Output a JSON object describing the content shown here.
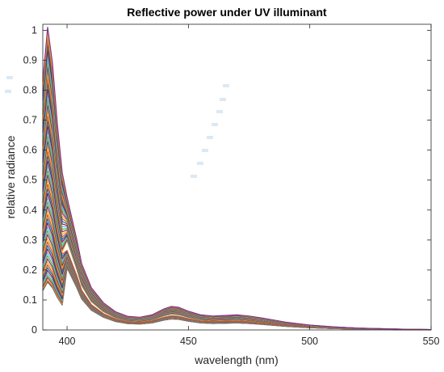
{
  "chart_data": {
    "type": "line",
    "title": "Reflective power under UV illuminant",
    "xlabel": "wavelength (nm)",
    "ylabel": "relative radiance",
    "xlim": [
      390,
      550
    ],
    "ylim": [
      0,
      1.02
    ],
    "xticks": [
      400,
      450,
      500,
      550
    ],
    "yticks": [
      0,
      0.1,
      0.2,
      0.3,
      0.4,
      0.5,
      0.6,
      0.7,
      0.8,
      0.9,
      1
    ],
    "ytick_labels": [
      "0",
      "0.1",
      "0.2",
      "0.3",
      "0.4",
      "0.5",
      "0.6",
      "0.7",
      "0.8",
      "0.9",
      "1"
    ],
    "grid": false,
    "legend": "none",
    "series_count": 60,
    "x": [
      390,
      392,
      394,
      396,
      398,
      400,
      402,
      404,
      406,
      410,
      415,
      420,
      425,
      430,
      435,
      440,
      443,
      446,
      450,
      455,
      460,
      465,
      470,
      475,
      480,
      490,
      500,
      510,
      520,
      530,
      540,
      550
    ],
    "profile": [
      0.82,
      1.0,
      0.88,
      0.68,
      0.52,
      0.44,
      0.37,
      0.3,
      0.22,
      0.14,
      0.09,
      0.06,
      0.045,
      0.042,
      0.05,
      0.07,
      0.078,
      0.075,
      0.062,
      0.05,
      0.046,
      0.048,
      0.05,
      0.046,
      0.04,
      0.026,
      0.016,
      0.01,
      0.006,
      0.004,
      0.002,
      0.001
    ],
    "peak_min": 0.16,
    "peak_max": 1.01,
    "colors": [
      "#0072BD",
      "#D95319",
      "#EDB120",
      "#7E2F8E",
      "#77AC30",
      "#4DBEEE",
      "#A2142F"
    ]
  }
}
